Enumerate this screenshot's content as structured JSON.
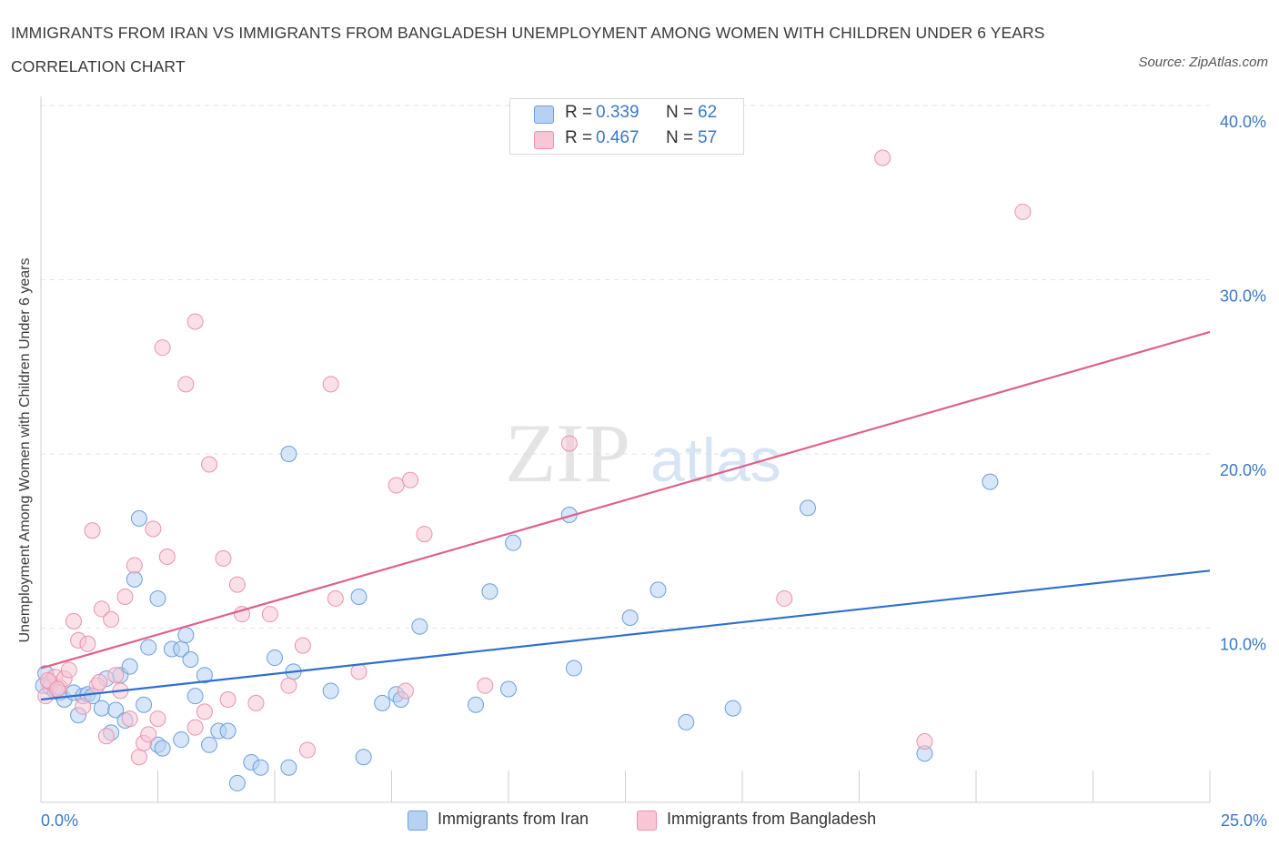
{
  "title": "IMMIGRANTS FROM IRAN VS IMMIGRANTS FROM BANGLADESH UNEMPLOYMENT AMONG WOMEN WITH CHILDREN UNDER 6 YEARS CORRELATION CHART",
  "source": "Source: ZipAtlas.com",
  "legend": {
    "r_label": "R =",
    "n_label": "N =",
    "rows": [
      {
        "r": "0.339",
        "n": "62"
      },
      {
        "r": "0.467",
        "n": "57"
      }
    ]
  },
  "colors": {
    "iran_fill": "#b7d1f3",
    "iran_stroke": "#6d9fdc",
    "iran_line": "#2f6fcf",
    "bangladesh_fill": "#f8c6d5",
    "bangladesh_stroke": "#ea93ae",
    "bangladesh_line": "#e0608c",
    "tick_label": "#3b78c8",
    "grid": "#e3e3e3"
  },
  "chart_data": {
    "type": "scatter",
    "title": "IMMIGRANTS FROM IRAN VS IMMIGRANTS FROM BANGLADESH UNEMPLOYMENT AMONG WOMEN WITH CHILDREN UNDER 6 YEARS CORRELATION CHART",
    "xlabel": "",
    "ylabel": "Unemployment Among Women with Children Under 6 years",
    "xlim": [
      0,
      25
    ],
    "ylim": [
      0,
      40
    ],
    "x_tick_labels": [
      "0.0%",
      "25.0%"
    ],
    "y_ticks": [
      10,
      20,
      30,
      40
    ],
    "y_tick_labels": [
      "10.0%",
      "20.0%",
      "30.0%",
      "40.0%"
    ],
    "watermark": [
      "ZIP",
      "atlas"
    ],
    "series": [
      {
        "name": "Immigrants from Iran",
        "r": 0.339,
        "n": 62,
        "trend": [
          [
            0,
            5.9
          ],
          [
            25,
            13.3
          ]
        ],
        "points": [
          [
            0.1,
            7.4
          ],
          [
            0.2,
            6.6
          ],
          [
            0.3,
            6.4
          ],
          [
            0.4,
            6.3
          ],
          [
            0.5,
            5.9
          ],
          [
            0.7,
            6.3
          ],
          [
            0.8,
            5.0
          ],
          [
            0.9,
            6.1
          ],
          [
            1.0,
            6.2
          ],
          [
            1.1,
            6.1
          ],
          [
            1.3,
            5.4
          ],
          [
            1.4,
            7.1
          ],
          [
            1.5,
            4.0
          ],
          [
            1.6,
            5.3
          ],
          [
            1.7,
            7.3
          ],
          [
            1.8,
            4.7
          ],
          [
            1.9,
            7.8
          ],
          [
            2.0,
            12.8
          ],
          [
            2.1,
            16.3
          ],
          [
            2.2,
            5.6
          ],
          [
            2.3,
            8.9
          ],
          [
            2.5,
            11.7
          ],
          [
            2.5,
            3.3
          ],
          [
            2.6,
            3.1
          ],
          [
            2.8,
            8.8
          ],
          [
            3.0,
            8.8
          ],
          [
            3.0,
            3.6
          ],
          [
            3.1,
            9.6
          ],
          [
            3.2,
            8.2
          ],
          [
            3.3,
            6.1
          ],
          [
            3.5,
            7.3
          ],
          [
            3.6,
            3.3
          ],
          [
            3.8,
            4.1
          ],
          [
            4.0,
            4.1
          ],
          [
            4.2,
            1.1
          ],
          [
            4.5,
            2.3
          ],
          [
            4.7,
            2.0
          ],
          [
            5.0,
            8.3
          ],
          [
            5.3,
            2.0
          ],
          [
            5.3,
            20.0
          ],
          [
            5.4,
            7.5
          ],
          [
            6.2,
            6.4
          ],
          [
            6.8,
            11.8
          ],
          [
            6.9,
            2.6
          ],
          [
            7.3,
            5.7
          ],
          [
            7.6,
            6.2
          ],
          [
            7.7,
            5.9
          ],
          [
            8.1,
            10.1
          ],
          [
            9.3,
            5.6
          ],
          [
            9.6,
            12.1
          ],
          [
            10.0,
            6.5
          ],
          [
            10.1,
            14.9
          ],
          [
            11.3,
            16.5
          ],
          [
            11.4,
            7.7
          ],
          [
            12.6,
            10.6
          ],
          [
            13.2,
            12.2
          ],
          [
            13.8,
            4.6
          ],
          [
            14.8,
            5.4
          ],
          [
            16.4,
            16.9
          ],
          [
            18.9,
            2.8
          ],
          [
            20.3,
            18.4
          ],
          [
            0.05,
            6.7
          ]
        ]
      },
      {
        "name": "Immigrants from Bangladesh",
        "r": 0.467,
        "n": 57,
        "trend": [
          [
            0,
            7.7
          ],
          [
            25,
            27.0
          ]
        ],
        "points": [
          [
            0.1,
            6.1
          ],
          [
            0.2,
            6.9
          ],
          [
            0.3,
            7.2
          ],
          [
            0.4,
            6.6
          ],
          [
            0.5,
            7.1
          ],
          [
            0.6,
            7.6
          ],
          [
            0.7,
            10.4
          ],
          [
            0.8,
            9.3
          ],
          [
            0.9,
            5.5
          ],
          [
            1.0,
            9.1
          ],
          [
            1.1,
            15.6
          ],
          [
            1.2,
            6.7
          ],
          [
            1.3,
            11.1
          ],
          [
            1.4,
            3.8
          ],
          [
            1.5,
            10.5
          ],
          [
            1.6,
            7.3
          ],
          [
            1.7,
            6.4
          ],
          [
            1.8,
            11.8
          ],
          [
            1.9,
            4.8
          ],
          [
            2.0,
            13.6
          ],
          [
            2.1,
            2.6
          ],
          [
            2.2,
            3.4
          ],
          [
            2.3,
            3.9
          ],
          [
            2.4,
            15.7
          ],
          [
            2.5,
            4.8
          ],
          [
            2.6,
            26.1
          ],
          [
            2.7,
            14.1
          ],
          [
            3.1,
            24.0
          ],
          [
            3.3,
            4.3
          ],
          [
            3.3,
            27.6
          ],
          [
            3.5,
            5.2
          ],
          [
            3.6,
            19.4
          ],
          [
            3.9,
            14.0
          ],
          [
            4.0,
            5.9
          ],
          [
            4.2,
            12.5
          ],
          [
            4.3,
            10.8
          ],
          [
            4.6,
            5.7
          ],
          [
            4.9,
            10.8
          ],
          [
            5.3,
            6.7
          ],
          [
            5.6,
            9.0
          ],
          [
            5.7,
            3.0
          ],
          [
            6.2,
            24.0
          ],
          [
            6.3,
            11.7
          ],
          [
            6.8,
            7.5
          ],
          [
            7.6,
            18.2
          ],
          [
            7.8,
            6.4
          ],
          [
            7.9,
            18.5
          ],
          [
            8.2,
            15.4
          ],
          [
            9.5,
            6.7
          ],
          [
            11.3,
            20.6
          ],
          [
            15.9,
            11.7
          ],
          [
            18.9,
            3.5
          ],
          [
            18.0,
            37.0
          ],
          [
            21.0,
            33.9
          ],
          [
            0.15,
            7.0
          ],
          [
            0.35,
            6.5
          ],
          [
            1.25,
            6.9
          ]
        ]
      }
    ]
  }
}
